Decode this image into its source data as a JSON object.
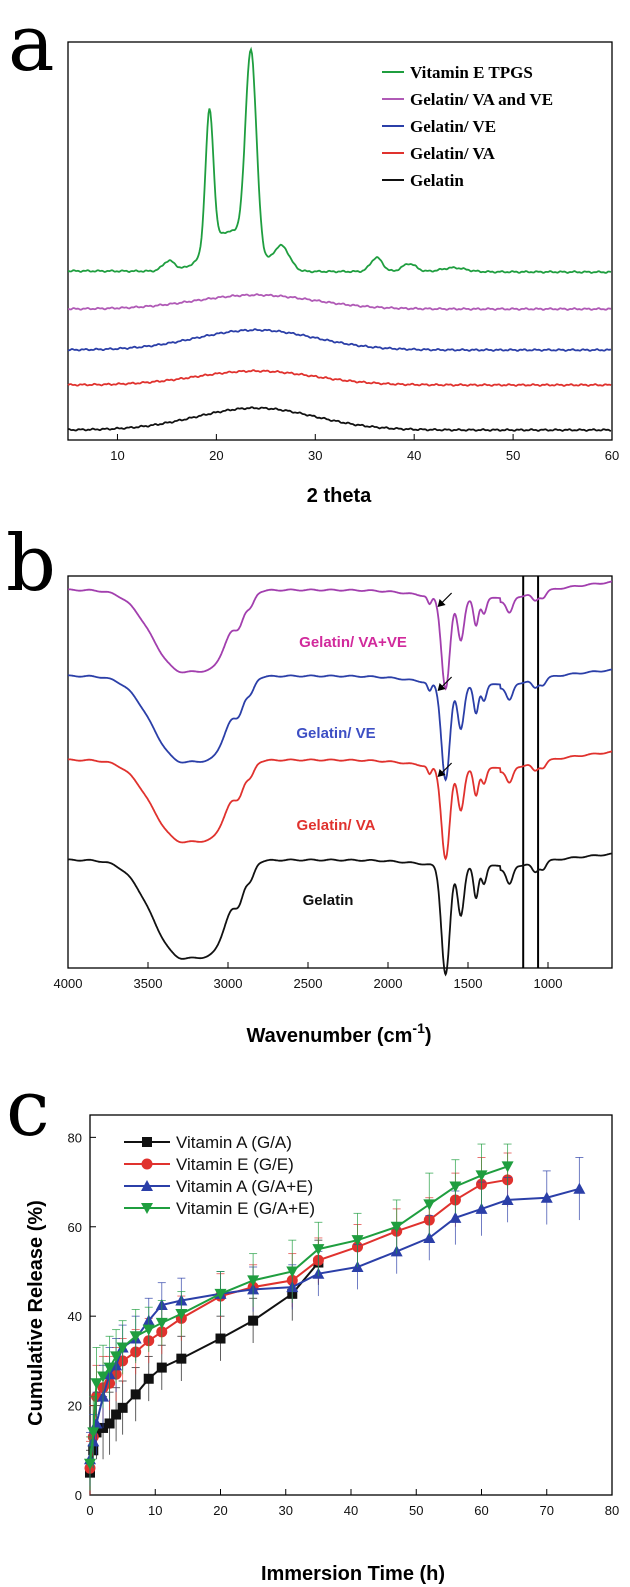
{
  "chart_data": [
    {
      "panel": "a",
      "type": "line",
      "xlabel": "2 theta",
      "ylabel": "",
      "xlim": [
        5,
        60
      ],
      "x_ticks": [
        10,
        20,
        30,
        40,
        50,
        60
      ],
      "y_ticks_shown": false,
      "legend_position": "top-right",
      "series": [
        {
          "name": "Vitamin E TPGS",
          "color": "#1f9e3f"
        },
        {
          "name": "Gelatin/ VA and VE",
          "color": "#b05ab6"
        },
        {
          "name": "Gelatin/ VE",
          "color": "#2b3fa8"
        },
        {
          "name": "Gelatin/ VA",
          "color": "#e0322e"
        },
        {
          "name": "Gelatin",
          "color": "#111111"
        }
      ]
    },
    {
      "panel": "b",
      "type": "line",
      "xlabel": "Wavenumber (cm",
      "xlabel_sup": "-1",
      "xlabel_close": ")",
      "ylabel": "",
      "xlim": [
        4000,
        600
      ],
      "x_ticks": [
        4000,
        3500,
        3000,
        2500,
        2000,
        1500,
        1000
      ],
      "reference_lines": [
        1155,
        1062
      ],
      "y_ticks_shown": false,
      "series": [
        {
          "name": "Gelatin/ VA+VE",
          "color": "#a23fae",
          "label_color": "#d12a9c"
        },
        {
          "name": "Gelatin/ VE",
          "color": "#2b3fa8",
          "label_color": "#3d4fc4"
        },
        {
          "name": "Gelatin/ VA",
          "color": "#e0322e",
          "label_color": "#e0322e"
        },
        {
          "name": "Gelatin",
          "color": "#111111",
          "label_color": "#111111"
        }
      ]
    },
    {
      "panel": "c",
      "type": "line",
      "xlabel": "Immersion Time (h)",
      "ylabel": "Cumulative Release (%)",
      "xlim": [
        0,
        80
      ],
      "ylim": [
        0,
        85
      ],
      "x_ticks": [
        0,
        10,
        20,
        30,
        40,
        50,
        60,
        70,
        80
      ],
      "y_ticks": [
        0,
        20,
        40,
        60,
        80
      ],
      "legend_position": "top-left",
      "series": [
        {
          "name": "Vitamin A (G/A)",
          "color": "#111111",
          "marker": "square",
          "x": [
            0,
            0.5,
            1,
            2,
            3,
            4,
            5,
            7,
            9,
            11,
            14,
            20,
            25,
            31,
            35
          ],
          "y": [
            5,
            10,
            14,
            15,
            16,
            18,
            19.5,
            22.5,
            26,
            28.5,
            30.5,
            35,
            39,
            45,
            52
          ],
          "err": [
            5,
            5,
            6,
            7,
            7,
            6,
            6,
            6,
            5,
            5,
            5,
            5,
            5,
            6,
            5
          ]
        },
        {
          "name": "Vitamin E (G/E)",
          "color": "#e0322e",
          "marker": "circle",
          "x": [
            0,
            0.5,
            1,
            2,
            3,
            4,
            5,
            7,
            9,
            11,
            14,
            20,
            25,
            31,
            35,
            41,
            47,
            52,
            56,
            60,
            64
          ],
          "y": [
            6,
            13,
            22,
            24,
            25,
            27,
            30,
            32,
            34.5,
            36.5,
            39.5,
            44.5,
            46.5,
            48,
            52.5,
            55.5,
            59,
            61.5,
            66,
            69.5,
            70.5
          ],
          "err": [
            6,
            7,
            7,
            7,
            6,
            6,
            5,
            5,
            5,
            5,
            5,
            5,
            5,
            6,
            5,
            5,
            5,
            5,
            6,
            6,
            6
          ]
        },
        {
          "name": "Vitamin A (G/A+E)",
          "color": "#2b3fa8",
          "marker": "triangle-up",
          "x": [
            0,
            0.5,
            1,
            2,
            3,
            4,
            5,
            7,
            9,
            11,
            14,
            20,
            25,
            31,
            35,
            41,
            47,
            52,
            56,
            60,
            64,
            70,
            75
          ],
          "y": [
            8,
            12,
            16,
            22,
            27,
            29,
            33,
            35,
            39,
            42.5,
            43.5,
            45,
            46,
            46.5,
            49.5,
            51,
            54.5,
            57.5,
            62,
            64,
            66,
            66.5,
            68.5
          ],
          "err": [
            6,
            6,
            7,
            7,
            6,
            6,
            5,
            5,
            5,
            5,
            5,
            5,
            5,
            5,
            5,
            5,
            5,
            5,
            6,
            6,
            5,
            6,
            7
          ]
        },
        {
          "name": "Vitamin E (G/A+E)",
          "color": "#1f9e3f",
          "marker": "triangle-down",
          "x": [
            0,
            0.5,
            1,
            2,
            3,
            4,
            5,
            7,
            9,
            11,
            14,
            20,
            25,
            31,
            35,
            41,
            47,
            52,
            56,
            60,
            64
          ],
          "y": [
            7,
            14,
            25,
            26.5,
            28.5,
            31,
            33,
            35.5,
            37,
            38.5,
            40.5,
            45,
            48,
            50,
            55,
            57,
            60,
            65,
            69,
            71.5,
            73.5
          ],
          "err": [
            6,
            8,
            8,
            7,
            7,
            6,
            6,
            6,
            5,
            5,
            5,
            5,
            6,
            7,
            6,
            6,
            6,
            7,
            6,
            7,
            5
          ]
        }
      ]
    }
  ]
}
